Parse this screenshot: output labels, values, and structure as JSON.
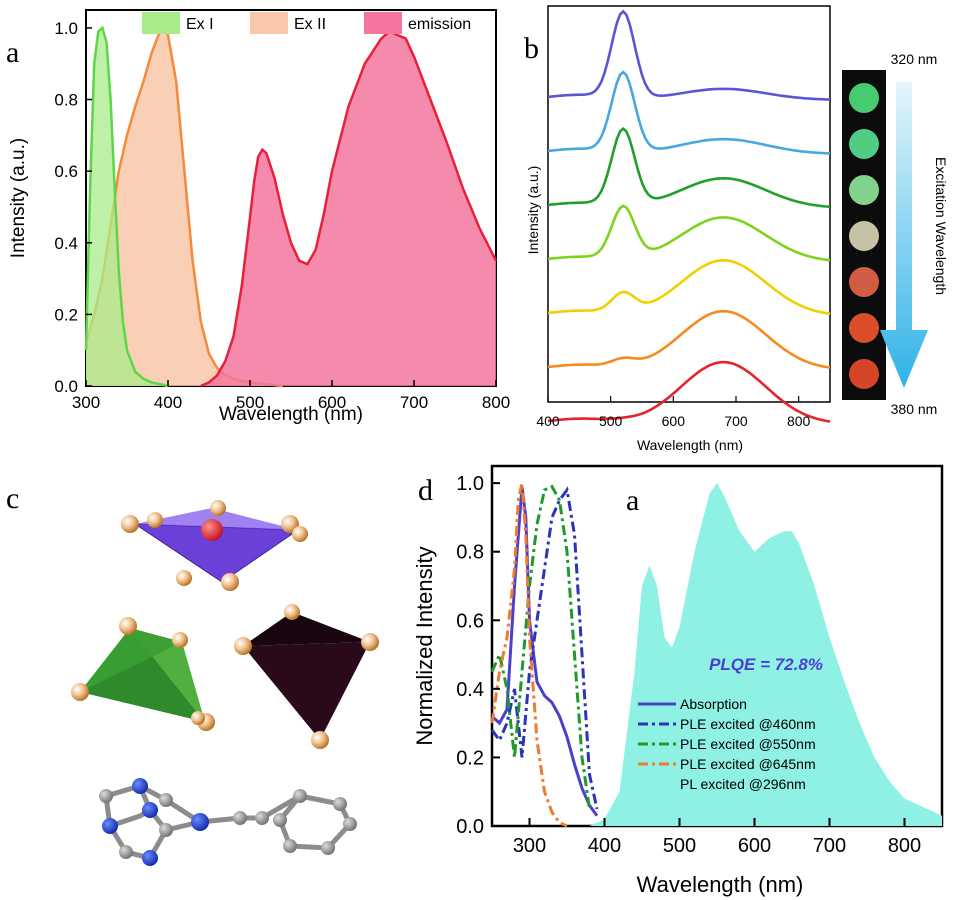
{
  "panel_labels": {
    "a": "a",
    "b": "b",
    "c": "c",
    "d": "d",
    "d_inset": "a"
  },
  "chart_data": [
    {
      "type": "area",
      "xlabel": "Wavelength (nm)",
      "ylabel": "Intensity (a.u.)",
      "xlim": [
        300,
        800
      ],
      "ylim": [
        0,
        1.05
      ],
      "xticks": [
        "300",
        "400",
        "500",
        "600",
        "700",
        "800"
      ],
      "yticks": [
        "0.0",
        "0.2",
        "0.4",
        "0.6",
        "0.8",
        "1.0"
      ],
      "legend_position": "top",
      "series": [
        {
          "name": "Ex I",
          "color": "#7be36a",
          "x": [
            300,
            305,
            310,
            315,
            320,
            325,
            330,
            335,
            340,
            345,
            350,
            360,
            370,
            380,
            400
          ],
          "y": [
            0.1,
            0.55,
            0.9,
            0.99,
            1.0,
            0.96,
            0.8,
            0.55,
            0.32,
            0.18,
            0.1,
            0.04,
            0.02,
            0.01,
            0.0
          ]
        },
        {
          "name": "Ex II",
          "color": "#f9a986",
          "x": [
            300,
            310,
            320,
            330,
            340,
            350,
            360,
            370,
            380,
            390,
            395,
            400,
            410,
            420,
            430,
            440,
            450,
            460,
            470,
            480,
            500,
            520,
            540
          ],
          "y": [
            0.12,
            0.2,
            0.3,
            0.45,
            0.6,
            0.7,
            0.78,
            0.85,
            0.93,
            0.99,
            1.0,
            0.98,
            0.85,
            0.6,
            0.35,
            0.18,
            0.09,
            0.05,
            0.03,
            0.02,
            0.01,
            0.005,
            0.0
          ]
        },
        {
          "name": "emission",
          "color": "#f0628f",
          "x": [
            440,
            450,
            460,
            470,
            480,
            490,
            500,
            505,
            510,
            515,
            520,
            530,
            540,
            550,
            560,
            570,
            580,
            590,
            600,
            620,
            640,
            660,
            670,
            680,
            690,
            700,
            720,
            740,
            760,
            780,
            800
          ],
          "y": [
            0.0,
            0.01,
            0.03,
            0.07,
            0.14,
            0.28,
            0.47,
            0.57,
            0.64,
            0.66,
            0.65,
            0.58,
            0.48,
            0.4,
            0.35,
            0.34,
            0.38,
            0.48,
            0.6,
            0.78,
            0.9,
            0.97,
            0.99,
            0.98,
            0.97,
            0.92,
            0.8,
            0.68,
            0.55,
            0.44,
            0.35
          ]
        }
      ]
    },
    {
      "type": "line",
      "xlabel": "Wavelength (nm)",
      "ylabel": "Intensity (a.u.)",
      "xlim": [
        400,
        850
      ],
      "xticks": [
        "400",
        "500",
        "600",
        "700",
        "800"
      ],
      "annotations": {
        "top": "320 nm",
        "bottom": "380 nm",
        "arrow_label": "Excitation Wavelength"
      },
      "series": [
        {
          "color": "#5b55d6",
          "green": 1.0,
          "red": 0.18
        },
        {
          "color": "#45a9e0",
          "green": 0.92,
          "red": 0.24
        },
        {
          "color": "#1fa02b",
          "green": 0.88,
          "red": 0.48
        },
        {
          "color": "#7fd21d",
          "green": 0.6,
          "red": 0.72
        },
        {
          "color": "#f0d000",
          "green": 0.22,
          "red": 0.9
        },
        {
          "color": "#f58a1e",
          "green": 0.08,
          "red": 0.95
        },
        {
          "color": "#e5242c",
          "green": 0.01,
          "red": 1.0
        }
      ],
      "dot_colors": [
        "#4ee07a",
        "#56e090",
        "#8fe89a",
        "#dcd6b4",
        "#e8644a",
        "#f0542e",
        "#ee4a2a"
      ]
    },
    {
      "type": "area",
      "xlabel": "Wavelength (nm)",
      "ylabel": "Normalized Intensity",
      "xlim": [
        250,
        850
      ],
      "ylim": [
        0,
        1.05
      ],
      "xticks": [
        "300",
        "400",
        "500",
        "600",
        "700",
        "800"
      ],
      "yticks": [
        "0.0",
        "0.2",
        "0.4",
        "0.6",
        "0.8",
        "1.0"
      ],
      "annotation": "PLQE = 72.8%",
      "legend_position": "center",
      "series": [
        {
          "name": "Absorption",
          "color": "#4b3fcf",
          "style": "solid",
          "x": [
            250,
            260,
            270,
            280,
            290,
            295,
            300,
            310,
            320,
            330,
            340,
            350,
            360,
            370,
            380,
            390
          ],
          "y": [
            0.32,
            0.3,
            0.34,
            0.7,
            0.99,
            0.9,
            0.6,
            0.42,
            0.38,
            0.36,
            0.32,
            0.26,
            0.18,
            0.11,
            0.06,
            0.03
          ]
        },
        {
          "name": "PLE excited @460nm",
          "color": "#2a35b8",
          "style": "dashdot",
          "x": [
            250,
            260,
            270,
            280,
            290,
            300,
            310,
            320,
            330,
            340,
            350,
            360,
            370,
            380,
            390
          ],
          "y": [
            0.28,
            0.25,
            0.3,
            0.4,
            0.2,
            0.45,
            0.6,
            0.75,
            0.9,
            0.95,
            0.98,
            0.85,
            0.5,
            0.15,
            0.05
          ]
        },
        {
          "name": "PLE excited @550nm",
          "color": "#1f9a2a",
          "style": "dashdot",
          "x": [
            250,
            260,
            270,
            280,
            290,
            300,
            310,
            320,
            330,
            340,
            350,
            360,
            370,
            380
          ],
          "y": [
            0.45,
            0.5,
            0.4,
            0.2,
            0.45,
            0.7,
            0.88,
            0.98,
            0.99,
            0.95,
            0.8,
            0.5,
            0.2,
            0.05
          ]
        },
        {
          "name": "PLE excited @645nm",
          "color": "#f07a30",
          "style": "dashdot",
          "x": [
            250,
            260,
            270,
            280,
            285,
            290,
            295,
            300,
            310,
            320,
            330,
            340,
            350
          ],
          "y": [
            0.3,
            0.45,
            0.55,
            0.75,
            0.95,
            1.0,
            0.85,
            0.55,
            0.25,
            0.1,
            0.04,
            0.01,
            0.0
          ]
        },
        {
          "name": "PL excited  @296nm",
          "color": "#8ff0e4",
          "style": "fill",
          "x": [
            380,
            400,
            420,
            440,
            450,
            460,
            470,
            480,
            490,
            500,
            520,
            540,
            550,
            560,
            580,
            600,
            620,
            640,
            650,
            660,
            680,
            700,
            720,
            740,
            760,
            780,
            800,
            820,
            840,
            850
          ],
          "y": [
            0.0,
            0.02,
            0.1,
            0.45,
            0.7,
            0.76,
            0.7,
            0.55,
            0.52,
            0.58,
            0.8,
            0.97,
            1.0,
            0.96,
            0.86,
            0.8,
            0.84,
            0.86,
            0.86,
            0.82,
            0.7,
            0.55,
            0.42,
            0.3,
            0.2,
            0.13,
            0.08,
            0.06,
            0.04,
            0.03
          ]
        }
      ]
    }
  ]
}
